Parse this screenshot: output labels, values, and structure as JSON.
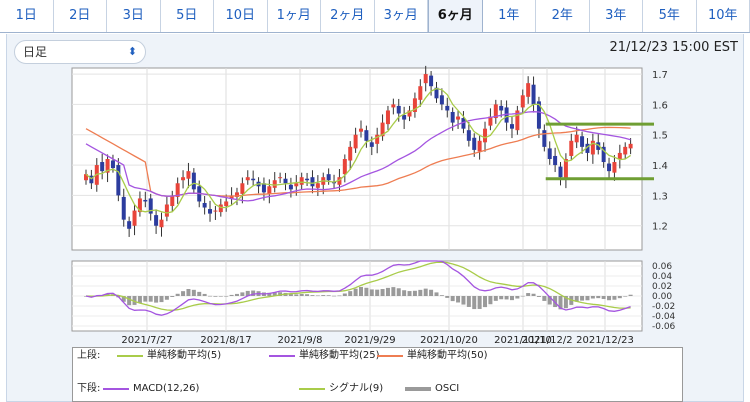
{
  "tabs": [
    "1日",
    "2日",
    "3日",
    "5日",
    "10日",
    "1ヶ月",
    "2ヶ月",
    "3ヶ月",
    "6ヶ月",
    "1年",
    "2年",
    "3年",
    "5年",
    "10年"
  ],
  "active_tab": "6ヶ月",
  "interval_select": "日足",
  "timestamp": "21/12/23 15:00 EST",
  "legend": {
    "upper_label": "上段:",
    "lower_label": "下段:",
    "ma5": "単純移動平均(5)",
    "ma25": "単純移動平均(25)",
    "ma50": "単純移動平均(50)",
    "macd": "MACD(12,26)",
    "signal": "シグナル(9)",
    "osci": "OSCI"
  },
  "colors": {
    "up": "#e8443a",
    "down": "#2c3c9e",
    "ma5": "#a9cc4a",
    "ma25": "#a455e0",
    "ma50": "#ee7d52",
    "osci": "#9a9a9a",
    "support": "#6f9e33"
  },
  "chart_data": [
    {
      "type": "candlestick",
      "x_tick_labels": [
        "2021/7/27",
        "2021/8/17",
        "2021/9/8",
        "2021/9/29",
        "2021/10/20",
        "2021/11/10",
        "2021/12/2",
        "2021/12/23"
      ],
      "y_ticks": [
        1.2,
        1.3,
        1.4,
        1.5,
        1.6,
        1.7
      ],
      "ylim": [
        1.12,
        1.72
      ],
      "closes": [
        1.37,
        1.34,
        1.4,
        1.38,
        1.42,
        1.39,
        1.3,
        1.22,
        1.19,
        1.25,
        1.29,
        1.28,
        1.24,
        1.2,
        1.22,
        1.27,
        1.3,
        1.34,
        1.36,
        1.38,
        1.32,
        1.28,
        1.26,
        1.24,
        1.25,
        1.27,
        1.28,
        1.3,
        1.31,
        1.34,
        1.36,
        1.35,
        1.33,
        1.31,
        1.33,
        1.35,
        1.36,
        1.34,
        1.32,
        1.34,
        1.36,
        1.35,
        1.33,
        1.34,
        1.36,
        1.35,
        1.34,
        1.36,
        1.42,
        1.46,
        1.5,
        1.52,
        1.48,
        1.46,
        1.5,
        1.54,
        1.58,
        1.6,
        1.57,
        1.55,
        1.58,
        1.62,
        1.66,
        1.7,
        1.66,
        1.62,
        1.6,
        1.58,
        1.54,
        1.56,
        1.52,
        1.48,
        1.45,
        1.48,
        1.52,
        1.56,
        1.6,
        1.58,
        1.54,
        1.52,
        1.58,
        1.63,
        1.67,
        1.6,
        1.52,
        1.46,
        1.42,
        1.4,
        1.36,
        1.42,
        1.48,
        1.5,
        1.46,
        1.44,
        1.48,
        1.45,
        1.41,
        1.38,
        1.41,
        1.44,
        1.46,
        1.47
      ],
      "support_lines": [
        1.535,
        1.355
      ],
      "series": [
        {
          "name": "単純移動平均(5)"
        },
        {
          "name": "単純移動平均(25)"
        },
        {
          "name": "単純移動平均(50)"
        }
      ]
    },
    {
      "type": "line",
      "y_ticks": [
        0.06,
        0.04,
        0.02,
        0.0,
        -0.02,
        -0.04,
        -0.06
      ],
      "ylim": [
        -0.07,
        0.07
      ],
      "series": [
        {
          "name": "MACD(12,26)"
        },
        {
          "name": "シグナル(9)"
        },
        {
          "name": "OSCI"
        }
      ]
    }
  ]
}
